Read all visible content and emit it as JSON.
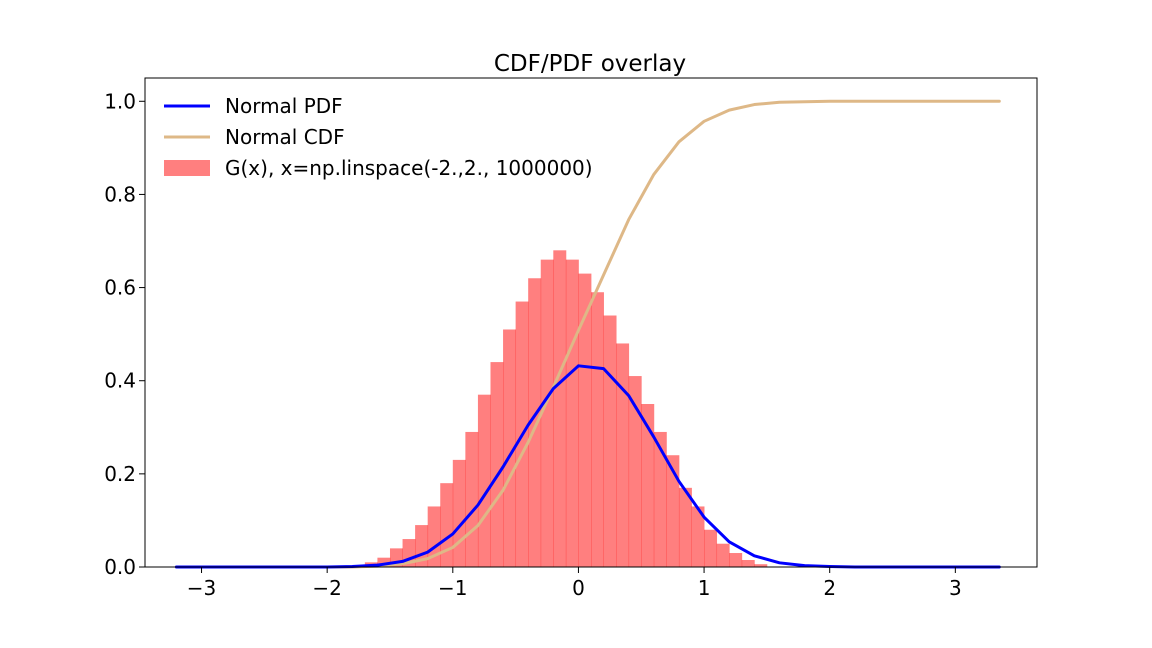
{
  "chart_data": {
    "type": "line",
    "title": "CDF/PDF overlay",
    "xlabel": "",
    "ylabel": "",
    "xlim": [
      -3.45,
      3.65
    ],
    "ylim": [
      0,
      1.05
    ],
    "xticks": [
      -3,
      -2,
      -1,
      0,
      1,
      2,
      3
    ],
    "xtick_labels": [
      "−3",
      "−2",
      "−1",
      "0",
      "1",
      "2",
      "3"
    ],
    "yticks": [
      0.0,
      0.2,
      0.4,
      0.6,
      0.8,
      1.0
    ],
    "ytick_labels": [
      "0.0",
      "0.2",
      "0.4",
      "0.6",
      "0.8",
      "1.0"
    ],
    "grid": false,
    "legend_position": "top-left",
    "series": [
      {
        "name": "Normal PDF",
        "kind": "line",
        "color": "#0000ff",
        "x": [
          -3.2,
          -2.0,
          -1.8,
          -1.6,
          -1.4,
          -1.2,
          -1.0,
          -0.8,
          -0.6,
          -0.4,
          -0.2,
          0.0,
          0.2,
          0.4,
          0.6,
          0.8,
          1.0,
          1.2,
          1.4,
          1.6,
          1.8,
          2.0,
          2.2,
          3.35
        ],
        "y": [
          0.0,
          0.0,
          0.001,
          0.004,
          0.012,
          0.032,
          0.071,
          0.133,
          0.215,
          0.305,
          0.383,
          0.432,
          0.426,
          0.368,
          0.279,
          0.184,
          0.107,
          0.054,
          0.024,
          0.009,
          0.003,
          0.001,
          0.0,
          0.0
        ]
      },
      {
        "name": "Normal CDF",
        "kind": "line",
        "color": "#deb887",
        "x": [
          -3.2,
          -2.0,
          -1.8,
          -1.6,
          -1.4,
          -1.2,
          -1.0,
          -0.8,
          -0.6,
          -0.4,
          -0.2,
          0.0,
          0.2,
          0.4,
          0.6,
          0.8,
          1.0,
          1.2,
          1.4,
          1.6,
          1.8,
          2.0,
          3.35
        ],
        "y": [
          0.0,
          0.0,
          0.0,
          0.002,
          0.007,
          0.018,
          0.042,
          0.089,
          0.165,
          0.268,
          0.386,
          0.508,
          0.627,
          0.746,
          0.843,
          0.913,
          0.957,
          0.981,
          0.993,
          0.998,
          0.999,
          1.0,
          1.0
        ]
      },
      {
        "name": "G(x), x=np.linspace(-2.,2., 1000000)",
        "kind": "histogram",
        "color": "#ff0000",
        "alpha": 0.5,
        "bin_start": -3.2,
        "bin_width": 0.1,
        "values": [
          0,
          0,
          0,
          0,
          0,
          0,
          0,
          0,
          0,
          0,
          0,
          0,
          0,
          0,
          0,
          0.01,
          0.02,
          0.04,
          0.06,
          0.09,
          0.13,
          0.18,
          0.23,
          0.29,
          0.37,
          0.44,
          0.51,
          0.57,
          0.62,
          0.66,
          0.68,
          0.66,
          0.63,
          0.59,
          0.54,
          0.48,
          0.41,
          0.35,
          0.29,
          0.24,
          0.17,
          0.13,
          0.08,
          0.05,
          0.03,
          0.015,
          0.006,
          0,
          0,
          0,
          0,
          0,
          0,
          0,
          0,
          0,
          0,
          0,
          0,
          0,
          0,
          0,
          0,
          0,
          0,
          0
        ]
      }
    ]
  }
}
